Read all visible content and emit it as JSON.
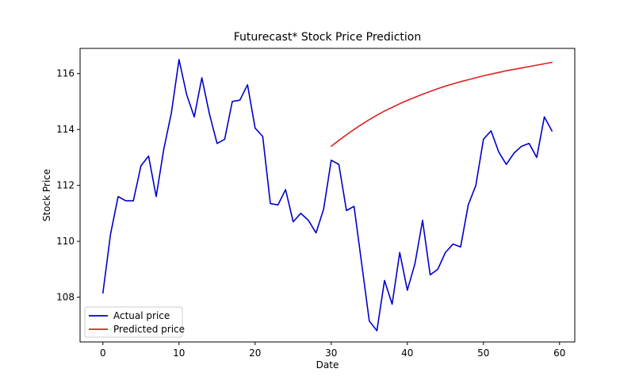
{
  "chart_data": {
    "type": "line",
    "title": "Futurecast* Stock Price Prediction",
    "xlabel": "Date",
    "ylabel": "Stock Price",
    "xlim": [
      -3,
      62
    ],
    "ylim": [
      106.4,
      116.9
    ],
    "xticks": [
      0,
      10,
      20,
      30,
      40,
      50,
      60
    ],
    "yticks": [
      108,
      110,
      112,
      114,
      116
    ],
    "grid": false,
    "legend_position": "lower-left",
    "series": [
      {
        "name": "Actual price",
        "color": "#0000cc",
        "x": [
          0,
          1,
          2,
          3,
          4,
          5,
          6,
          7,
          8,
          9,
          10,
          11,
          12,
          13,
          14,
          15,
          16,
          17,
          18,
          19,
          20,
          21,
          22,
          23,
          24,
          25,
          26,
          27,
          28,
          29,
          30,
          31,
          32,
          33,
          34,
          35,
          36,
          37,
          38,
          39,
          40,
          41,
          42,
          43,
          44,
          45,
          46,
          47,
          48,
          49,
          50,
          51,
          52,
          53,
          54,
          55,
          56,
          57,
          58,
          59
        ],
        "values": [
          108.15,
          110.25,
          111.6,
          111.45,
          111.45,
          112.7,
          113.05,
          111.6,
          113.3,
          114.6,
          116.5,
          115.25,
          114.45,
          115.85,
          114.55,
          113.5,
          113.65,
          115.0,
          115.05,
          115.6,
          114.05,
          113.75,
          111.35,
          111.3,
          111.85,
          110.7,
          111.0,
          110.75,
          110.3,
          111.15,
          112.9,
          112.75,
          111.1,
          111.25,
          109.2,
          107.15,
          106.8,
          108.6,
          107.75,
          109.6,
          108.25,
          109.2,
          110.75,
          108.8,
          109.0,
          109.6,
          109.9,
          109.8,
          111.3,
          112.0,
          113.65,
          113.95,
          113.2,
          112.75,
          113.15,
          113.4,
          113.5,
          113.0,
          114.45,
          113.95
        ]
      },
      {
        "name": "Predicted price",
        "color": "#dd2222",
        "x": [
          30,
          31,
          32,
          33,
          34,
          35,
          36,
          37,
          38,
          39,
          40,
          41,
          42,
          43,
          44,
          45,
          46,
          47,
          48,
          49,
          50,
          51,
          52,
          53,
          54,
          55,
          56,
          57,
          58,
          59
        ],
        "values": [
          113.4,
          113.61,
          113.81,
          114.0,
          114.18,
          114.35,
          114.51,
          114.66,
          114.79,
          114.92,
          115.04,
          115.15,
          115.26,
          115.36,
          115.46,
          115.55,
          115.63,
          115.71,
          115.78,
          115.85,
          115.92,
          115.98,
          116.04,
          116.1,
          116.15,
          116.2,
          116.25,
          116.3,
          116.35,
          116.4
        ]
      }
    ]
  }
}
